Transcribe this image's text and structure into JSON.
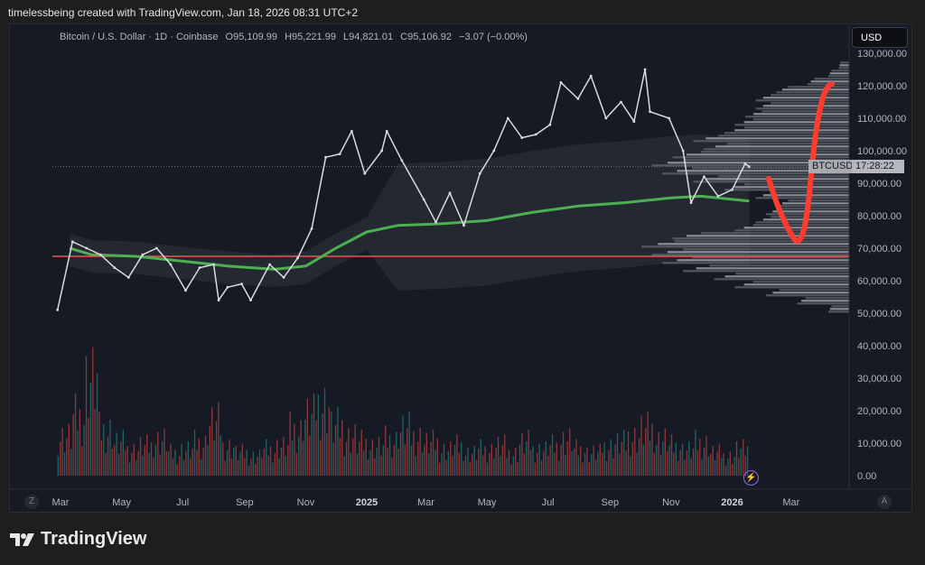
{
  "header": {
    "credit": "timelessbeing created with TradingView.com, Jan 18, 2026 08:31 UTC+2"
  },
  "legend": {
    "symbol": "Bitcoin / U.S. Dollar · 1D · Coinbase",
    "open": "O95,109.99",
    "high": "H95,221.99",
    "low": "L94,821.01",
    "close": "C95,106.92",
    "change": "−3.07 (−0.00%)"
  },
  "currency_button": "USD",
  "price_tag": {
    "symbol": "BTCUSD",
    "countdown": "17:28:22"
  },
  "bottom": {
    "left_button": "Z",
    "right_button": "A"
  },
  "brand": "TradingView",
  "colors": {
    "background": "#161a25",
    "price": "#d9dbe0",
    "ma": "#4caf50",
    "support_line": "#f05350",
    "annotation": "#ff3b2f",
    "volume_up": "#26a69a",
    "volume_down": "#ef5350"
  },
  "chart_data": {
    "type": "line",
    "ylim": [
      0,
      130000
    ],
    "y_ticks": [
      "130,000.00",
      "120,000.00",
      "110,000.00",
      "100,000.00",
      "90,000.00",
      "80,000.00",
      "70,000.00",
      "60,000.00",
      "50,000.00",
      "40,000.00",
      "30,000.00",
      "20,000.00",
      "10,000.00",
      "0.00"
    ],
    "x_ticks": [
      {
        "label": "Mar",
        "date": "2024-03-01"
      },
      {
        "label": "May",
        "date": "2024-05-01"
      },
      {
        "label": "Jul",
        "date": "2024-07-01"
      },
      {
        "label": "Sep",
        "date": "2024-09-01"
      },
      {
        "label": "Nov",
        "date": "2024-11-01"
      },
      {
        "label": "2025",
        "date": "2025-01-01",
        "bold": true
      },
      {
        "label": "Mar",
        "date": "2025-03-01"
      },
      {
        "label": "May",
        "date": "2025-05-01"
      },
      {
        "label": "Jul",
        "date": "2025-07-01"
      },
      {
        "label": "Sep",
        "date": "2025-09-01"
      },
      {
        "label": "Nov",
        "date": "2025-11-01"
      },
      {
        "label": "2026",
        "date": "2026-01-01",
        "bold": true
      },
      {
        "label": "Mar",
        "date": "2026-03-01"
      }
    ],
    "series": [
      {
        "key": "price",
        "points": [
          [
            "2024-02-27",
            51000
          ],
          [
            "2024-03-13",
            72000
          ],
          [
            "2024-03-27",
            70000
          ],
          [
            "2024-04-10",
            68000
          ],
          [
            "2024-04-24",
            64000
          ],
          [
            "2024-05-08",
            61000
          ],
          [
            "2024-05-22",
            68000
          ],
          [
            "2024-06-05",
            70000
          ],
          [
            "2024-06-19",
            65000
          ],
          [
            "2024-07-04",
            57000
          ],
          [
            "2024-07-18",
            64000
          ],
          [
            "2024-08-01",
            65000
          ],
          [
            "2024-08-06",
            54000
          ],
          [
            "2024-08-15",
            58000
          ],
          [
            "2024-08-29",
            59000
          ],
          [
            "2024-09-07",
            54000
          ],
          [
            "2024-09-26",
            65000
          ],
          [
            "2024-10-10",
            61000
          ],
          [
            "2024-10-24",
            67000
          ],
          [
            "2024-11-07",
            76000
          ],
          [
            "2024-11-21",
            98000
          ],
          [
            "2024-12-05",
            99000
          ],
          [
            "2024-12-17",
            106000
          ],
          [
            "2024-12-30",
            93000
          ],
          [
            "2025-01-16",
            100000
          ],
          [
            "2025-01-21",
            106000
          ],
          [
            "2025-02-05",
            97000
          ],
          [
            "2025-02-27",
            85000
          ],
          [
            "2025-03-11",
            78000
          ],
          [
            "2025-03-25",
            87000
          ],
          [
            "2025-04-08",
            77000
          ],
          [
            "2025-04-24",
            93000
          ],
          [
            "2025-05-08",
            100000
          ],
          [
            "2025-05-22",
            110000
          ],
          [
            "2025-06-05",
            104000
          ],
          [
            "2025-06-19",
            105000
          ],
          [
            "2025-07-03",
            108000
          ],
          [
            "2025-07-14",
            121000
          ],
          [
            "2025-07-31",
            116000
          ],
          [
            "2025-08-13",
            123000
          ],
          [
            "2025-08-28",
            110000
          ],
          [
            "2025-09-12",
            115000
          ],
          [
            "2025-09-25",
            109000
          ],
          [
            "2025-10-06",
            125000
          ],
          [
            "2025-10-11",
            112000
          ],
          [
            "2025-10-30",
            110000
          ],
          [
            "2025-11-13",
            100000
          ],
          [
            "2025-11-21",
            84000
          ],
          [
            "2025-12-04",
            92000
          ],
          [
            "2025-12-18",
            86000
          ],
          [
            "2026-01-01",
            88000
          ],
          [
            "2026-01-14",
            96000
          ],
          [
            "2026-01-18",
            95107
          ]
        ]
      },
      {
        "key": "moving_average",
        "points": [
          [
            "2024-03-10",
            70000
          ],
          [
            "2024-04-01",
            68000
          ],
          [
            "2024-05-15",
            67500
          ],
          [
            "2024-07-01",
            66000
          ],
          [
            "2024-08-15",
            64500
          ],
          [
            "2024-10-01",
            63500
          ],
          [
            "2024-11-01",
            64500
          ],
          [
            "2024-12-01",
            70000
          ],
          [
            "2025-01-01",
            75000
          ],
          [
            "2025-02-01",
            77000
          ],
          [
            "2025-03-15",
            77500
          ],
          [
            "2025-05-01",
            78500
          ],
          [
            "2025-06-15",
            81000
          ],
          [
            "2025-08-01",
            83000
          ],
          [
            "2025-09-15",
            84000
          ],
          [
            "2025-11-01",
            85500
          ],
          [
            "2025-12-01",
            86000
          ],
          [
            "2026-01-18",
            84500
          ]
        ]
      }
    ],
    "horizontal_lines": [
      {
        "value": 67500,
        "color": "#f05350"
      },
      {
        "value": 95107,
        "style": "dotted"
      }
    ],
    "volume_profile": {
      "from": 50000,
      "step": 2500,
      "values": [
        10,
        25,
        40,
        55,
        65,
        80,
        90,
        95,
        100,
        85,
        55,
        45,
        40,
        35,
        45,
        60,
        75,
        90,
        95,
        85,
        70,
        75,
        60,
        55,
        50,
        45,
        45,
        35,
        20,
        10,
        5
      ]
    },
    "volume": [
      12,
      18,
      30,
      14,
      10,
      8,
      9,
      11,
      7,
      8,
      10,
      16,
      9,
      7,
      6,
      8,
      9,
      14,
      18,
      22,
      15,
      12,
      10,
      9,
      11,
      14,
      12,
      10,
      8,
      9,
      7,
      8,
      9,
      7,
      10,
      8,
      9,
      11,
      8,
      7,
      9,
      10,
      12,
      14,
      11,
      9,
      8,
      10,
      7,
      6,
      8
    ]
  }
}
